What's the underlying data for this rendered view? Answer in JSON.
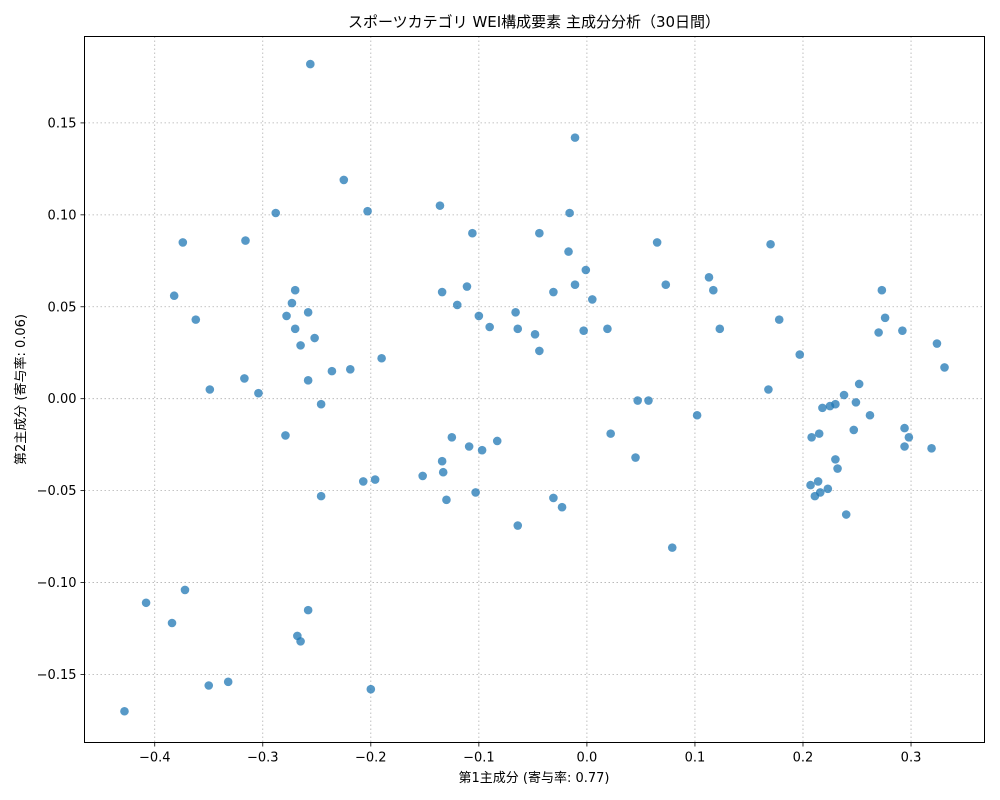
{
  "chart_data": {
    "type": "scatter",
    "title": "スポーツカテゴリ WEI構成要素 主成分分析（30日間）",
    "xlabel": "第1主成分 (寄与率: 0.77)",
    "ylabel": "第2主成分 (寄与率: 0.06)",
    "xlim": [
      -0.465,
      0.368
    ],
    "ylim": [
      -0.187,
      0.197
    ],
    "xticks": [
      -0.4,
      -0.3,
      -0.2,
      -0.1,
      0.0,
      0.1,
      0.2,
      0.3
    ],
    "xtick_labels": [
      "−0.4",
      "−0.3",
      "−0.2",
      "−0.1",
      "0.0",
      "0.1",
      "0.2",
      "0.3"
    ],
    "yticks": [
      -0.15,
      -0.1,
      -0.05,
      0.0,
      0.05,
      0.1,
      0.15
    ],
    "ytick_labels": [
      "−0.15",
      "−0.10",
      "−0.05",
      "0.00",
      "0.05",
      "0.10",
      "0.15"
    ],
    "grid": true,
    "marker_color": "#1f77b4",
    "marker_alpha": 0.75,
    "points": [
      [
        -0.256,
        0.182
      ],
      [
        -0.011,
        0.142
      ],
      [
        -0.225,
        0.119
      ],
      [
        -0.288,
        0.101
      ],
      [
        -0.203,
        0.102
      ],
      [
        -0.136,
        0.105
      ],
      [
        -0.016,
        0.101
      ],
      [
        -0.374,
        0.085
      ],
      [
        -0.316,
        0.086
      ],
      [
        -0.106,
        0.09
      ],
      [
        -0.044,
        0.09
      ],
      [
        0.065,
        0.085
      ],
      [
        0.17,
        0.084
      ],
      [
        -0.017,
        0.08
      ],
      [
        -0.001,
        0.07
      ],
      [
        -0.382,
        0.056
      ],
      [
        -0.27,
        0.059
      ],
      [
        -0.273,
        0.052
      ],
      [
        -0.258,
        0.047
      ],
      [
        -0.278,
        0.045
      ],
      [
        -0.362,
        0.043
      ],
      [
        -0.27,
        0.038
      ],
      [
        -0.265,
        0.029
      ],
      [
        -0.252,
        0.033
      ],
      [
        -0.111,
        0.061
      ],
      [
        -0.134,
        0.058
      ],
      [
        -0.12,
        0.051
      ],
      [
        -0.1,
        0.045
      ],
      [
        -0.09,
        0.039
      ],
      [
        -0.066,
        0.047
      ],
      [
        -0.064,
        0.038
      ],
      [
        -0.048,
        0.035
      ],
      [
        -0.044,
        0.026
      ],
      [
        -0.031,
        0.058
      ],
      [
        -0.011,
        0.062
      ],
      [
        0.005,
        0.054
      ],
      [
        -0.003,
        0.037
      ],
      [
        0.019,
        0.038
      ],
      [
        0.073,
        0.062
      ],
      [
        0.113,
        0.066
      ],
      [
        0.117,
        0.059
      ],
      [
        0.123,
        0.038
      ],
      [
        0.178,
        0.043
      ],
      [
        0.197,
        0.024
      ],
      [
        0.273,
        0.059
      ],
      [
        0.276,
        0.044
      ],
      [
        0.27,
        0.036
      ],
      [
        0.292,
        0.037
      ],
      [
        0.324,
        0.03
      ],
      [
        0.331,
        0.017
      ],
      [
        -0.317,
        0.011
      ],
      [
        -0.349,
        0.005
      ],
      [
        -0.304,
        0.003
      ],
      [
        -0.258,
        0.01
      ],
      [
        -0.236,
        0.015
      ],
      [
        -0.219,
        0.016
      ],
      [
        -0.19,
        0.022
      ],
      [
        -0.246,
        -0.003
      ],
      [
        -0.279,
        -0.02
      ],
      [
        0.047,
        -0.001
      ],
      [
        0.057,
        -0.001
      ],
      [
        0.102,
        -0.009
      ],
      [
        0.168,
        0.005
      ],
      [
        0.238,
        0.002
      ],
      [
        0.252,
        0.008
      ],
      [
        0.218,
        -0.005
      ],
      [
        0.225,
        -0.004
      ],
      [
        0.23,
        -0.003
      ],
      [
        0.249,
        -0.002
      ],
      [
        0.262,
        -0.009
      ],
      [
        0.247,
        -0.017
      ],
      [
        0.294,
        -0.016
      ],
      [
        0.298,
        -0.021
      ],
      [
        0.294,
        -0.026
      ],
      [
        0.319,
        -0.027
      ],
      [
        0.208,
        -0.021
      ],
      [
        0.215,
        -0.019
      ],
      [
        0.23,
        -0.033
      ],
      [
        0.232,
        -0.038
      ],
      [
        0.214,
        -0.045
      ],
      [
        0.207,
        -0.047
      ],
      [
        0.216,
        -0.051
      ],
      [
        0.211,
        -0.053
      ],
      [
        0.223,
        -0.049
      ],
      [
        0.24,
        -0.063
      ],
      [
        -0.125,
        -0.021
      ],
      [
        -0.109,
        -0.026
      ],
      [
        -0.097,
        -0.028
      ],
      [
        -0.083,
        -0.023
      ],
      [
        -0.134,
        -0.034
      ],
      [
        -0.133,
        -0.04
      ],
      [
        -0.152,
        -0.042
      ],
      [
        -0.207,
        -0.045
      ],
      [
        -0.196,
        -0.044
      ],
      [
        -0.246,
        -0.053
      ],
      [
        -0.13,
        -0.055
      ],
      [
        -0.103,
        -0.051
      ],
      [
        -0.031,
        -0.054
      ],
      [
        -0.023,
        -0.059
      ],
      [
        -0.064,
        -0.069
      ],
      [
        0.022,
        -0.019
      ],
      [
        0.045,
        -0.032
      ],
      [
        0.079,
        -0.081
      ],
      [
        -0.408,
        -0.111
      ],
      [
        -0.372,
        -0.104
      ],
      [
        -0.384,
        -0.122
      ],
      [
        -0.258,
        -0.115
      ],
      [
        -0.268,
        -0.129
      ],
      [
        -0.265,
        -0.132
      ],
      [
        -0.35,
        -0.156
      ],
      [
        -0.332,
        -0.154
      ],
      [
        -0.2,
        -0.158
      ],
      [
        -0.428,
        -0.17
      ]
    ]
  }
}
